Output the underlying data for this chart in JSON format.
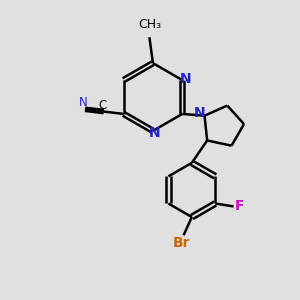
{
  "bg": "#e0e0e0",
  "bond_color": "#000000",
  "n_color": "#2222cc",
  "f_color": "#cc00cc",
  "br_color": "#cc6600",
  "lw": 1.8,
  "dbo": 0.055,
  "figsize": [
    3.0,
    3.0
  ],
  "dpi": 100,
  "xlim": [
    0,
    10
  ],
  "ylim": [
    0,
    10
  ]
}
